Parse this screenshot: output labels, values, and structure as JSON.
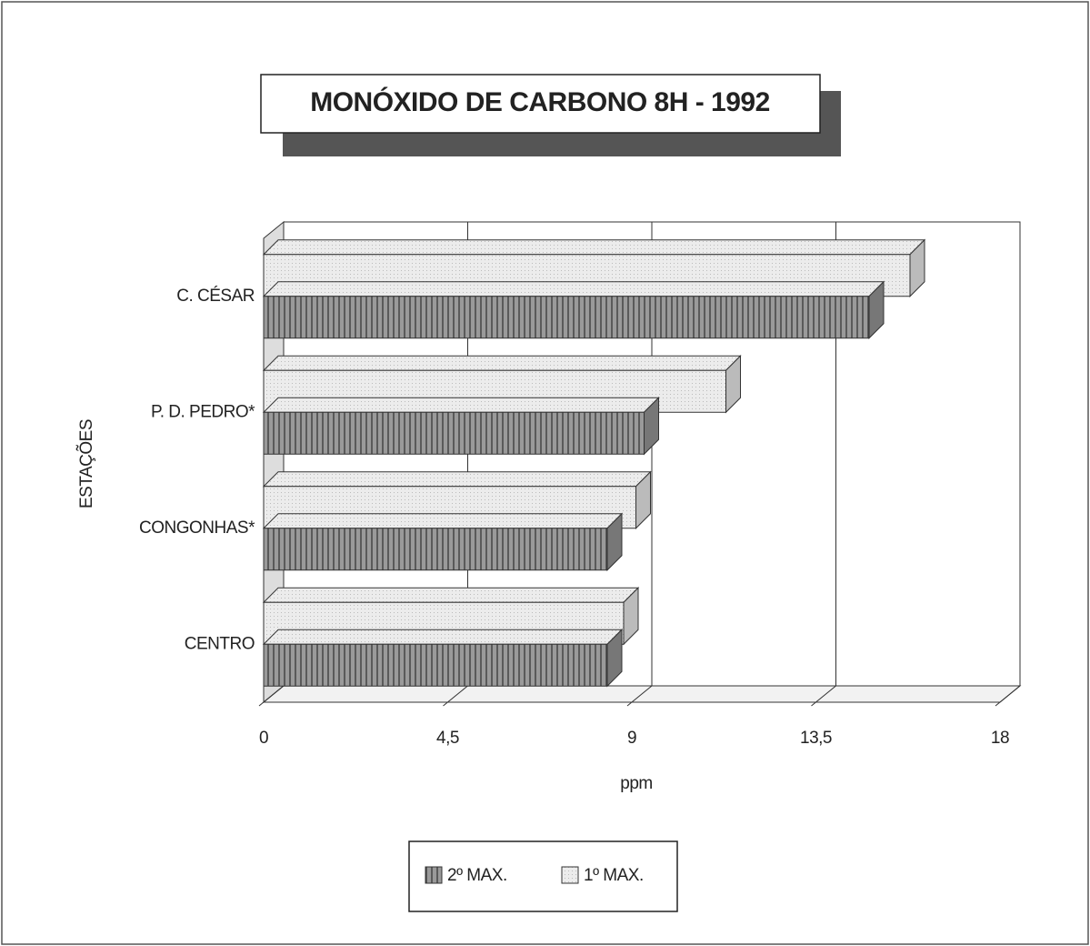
{
  "chart_data": {
    "type": "bar3d_horizontal",
    "title": "MONÓXIDO DE CARBONO 8H - 1992",
    "x_label": "ppm",
    "y_label": "ESTAÇÕES",
    "categories": [
      "C. CÉSAR",
      "P. D. PEDRO*",
      "CONGONHAS*",
      "CENTRO"
    ],
    "series": [
      {
        "name": "2º MAX.",
        "color": "#8a8a8a",
        "values": [
          14.8,
          9.3,
          8.4,
          8.4
        ]
      },
      {
        "name": "1º MAX.",
        "color": "#e6e6e6",
        "values": [
          15.8,
          11.3,
          9.1,
          8.8
        ]
      }
    ],
    "xlim": [
      0,
      18
    ],
    "xticks": [
      0,
      {
        "value": 4.5,
        "label": "4,5"
      },
      9,
      {
        "value": 13.5,
        "label": "13,5"
      },
      18
    ],
    "grid": true,
    "legend": "bottom"
  }
}
